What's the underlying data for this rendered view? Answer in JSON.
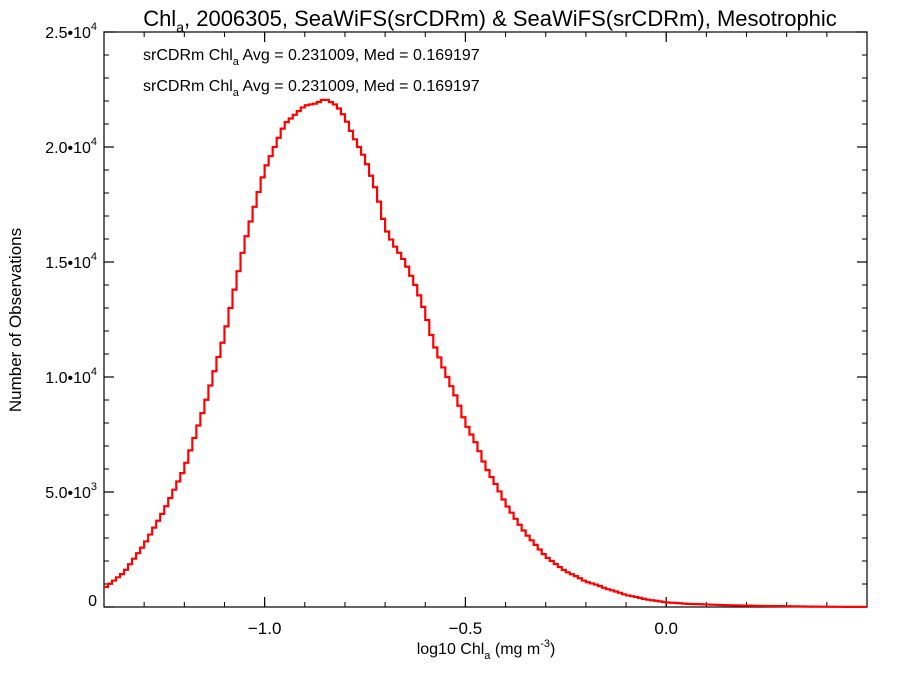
{
  "chart_data": {
    "type": "line",
    "step": true,
    "title": {
      "pre": "Chl",
      "sub": "a",
      "post": ", 2006305, SeaWiFS(srCDRm) & SeaWiFS(srCDRm), Mesotrophic"
    },
    "xlabel": {
      "pre": "log10 Chl",
      "sub": "a",
      "post": " (mg m",
      "sup": "-3",
      "end": ")"
    },
    "ylabel": "Number of Observations",
    "xlim": [
      -1.4,
      0.5
    ],
    "ylim": [
      0,
      25000
    ],
    "x_ticks": [
      {
        "value": -1.0,
        "label": "−1.0"
      },
      {
        "value": -0.5,
        "label": "−0.5"
      },
      {
        "value": 0.0,
        "label": "0.0"
      }
    ],
    "y_ticks": [
      {
        "value": 0,
        "mant": "0",
        "exp": ""
      },
      {
        "value": 5000,
        "mant": "5.0•10",
        "exp": "3"
      },
      {
        "value": 10000,
        "mant": "1.0•10",
        "exp": "4"
      },
      {
        "value": 15000,
        "mant": "1.5•10",
        "exp": "4"
      },
      {
        "value": 20000,
        "mant": "2.0•10",
        "exp": "4"
      },
      {
        "value": 25000,
        "mant": "2.5•10",
        "exp": "4"
      }
    ],
    "annotations": [
      {
        "pre": "srCDRm Chl",
        "sub": "a",
        "post": " Avg = 0.231009, Med = 0.169197",
        "color": "#000000"
      },
      {
        "pre": "srCDRm Chl",
        "sub": "a",
        "post": " Avg = 0.231009, Med = 0.169197",
        "color": "#ff0000"
      }
    ],
    "series": [
      {
        "color": "#ff0000",
        "x": [
          -1.4,
          -1.35,
          -1.3,
          -1.25,
          -1.2,
          -1.15,
          -1.1,
          -1.05,
          -1.0,
          -0.95,
          -0.9,
          -0.87,
          -0.85,
          -0.83,
          -0.82,
          -0.8,
          -0.78,
          -0.75,
          -0.72,
          -0.7,
          -0.68,
          -0.65,
          -0.62,
          -0.6,
          -0.58,
          -0.55,
          -0.52,
          -0.5,
          -0.47,
          -0.45,
          -0.42,
          -0.4,
          -0.37,
          -0.35,
          -0.32,
          -0.3,
          -0.27,
          -0.25,
          -0.22,
          -0.2,
          -0.17,
          -0.15,
          -0.12,
          -0.1,
          -0.07,
          -0.05,
          -0.02,
          0.0,
          0.03,
          0.05,
          0.1,
          0.15,
          0.2,
          0.25,
          0.3,
          0.35,
          0.4,
          0.45,
          0.5
        ],
        "y": [
          800,
          1500,
          2700,
          4200,
          6000,
          8700,
          11800,
          15800,
          19000,
          21000,
          21800,
          21900,
          22100,
          21900,
          21800,
          21300,
          20500,
          19500,
          18000,
          16500,
          15800,
          15000,
          13800,
          12800,
          11500,
          10200,
          9000,
          8000,
          7000,
          6100,
          5200,
          4500,
          3700,
          3200,
          2600,
          2200,
          1800,
          1550,
          1300,
          1100,
          950,
          800,
          650,
          520,
          420,
          330,
          260,
          200,
          170,
          140,
          110,
          80,
          60,
          45,
          35,
          20,
          12,
          6,
          3
        ]
      }
    ]
  }
}
